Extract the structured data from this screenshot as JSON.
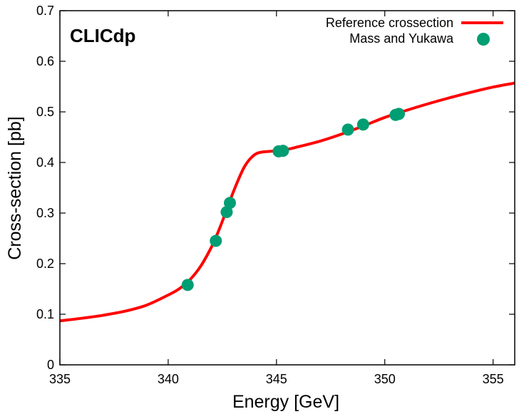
{
  "chart_data": {
    "type": "line",
    "watermark": "CLICdp",
    "xlabel": "Energy [GeV]",
    "ylabel": "Cross-section [pb]",
    "xlim": [
      335,
      356
    ],
    "ylim": [
      0,
      0.7
    ],
    "x_ticks": [
      335,
      340,
      345,
      350,
      355
    ],
    "x_tick_labels": [
      "335",
      "340",
      "345",
      "350",
      "355"
    ],
    "y_ticks": [
      0,
      0.1,
      0.2,
      0.3,
      0.4,
      0.5,
      0.6,
      0.7
    ],
    "y_tick_labels": [
      "0",
      "0.1",
      "0.2",
      "0.3",
      "0.4",
      "0.5",
      "0.6",
      "0.7"
    ],
    "legend_position": "top-right",
    "series": [
      {
        "name": "Reference crossection",
        "kind": "line",
        "color": "#ff0000",
        "x": [
          335,
          336,
          337,
          338,
          339,
          340,
          340.5,
          341,
          341.5,
          342,
          342.3,
          342.6,
          342.9,
          343.2,
          343.5,
          343.8,
          344.1,
          344.4,
          344.7,
          345,
          345.5,
          346,
          347,
          348,
          349,
          350,
          351,
          352,
          353,
          354,
          355,
          356
        ],
        "y": [
          0.087,
          0.092,
          0.098,
          0.106,
          0.118,
          0.138,
          0.15,
          0.168,
          0.195,
          0.233,
          0.262,
          0.295,
          0.33,
          0.362,
          0.39,
          0.408,
          0.418,
          0.421,
          0.422,
          0.423,
          0.426,
          0.431,
          0.442,
          0.456,
          0.472,
          0.489,
          0.503,
          0.516,
          0.528,
          0.539,
          0.549,
          0.557
        ]
      },
      {
        "name": "Mass and Yukawa",
        "kind": "scatter",
        "color": "#009e73",
        "x": [
          340.9,
          342.2,
          342.7,
          342.85,
          345.1,
          345.3,
          348.3,
          349.0,
          350.5,
          350.65
        ],
        "y": [
          0.158,
          0.245,
          0.302,
          0.32,
          0.422,
          0.423,
          0.465,
          0.475,
          0.494,
          0.496
        ]
      }
    ]
  }
}
